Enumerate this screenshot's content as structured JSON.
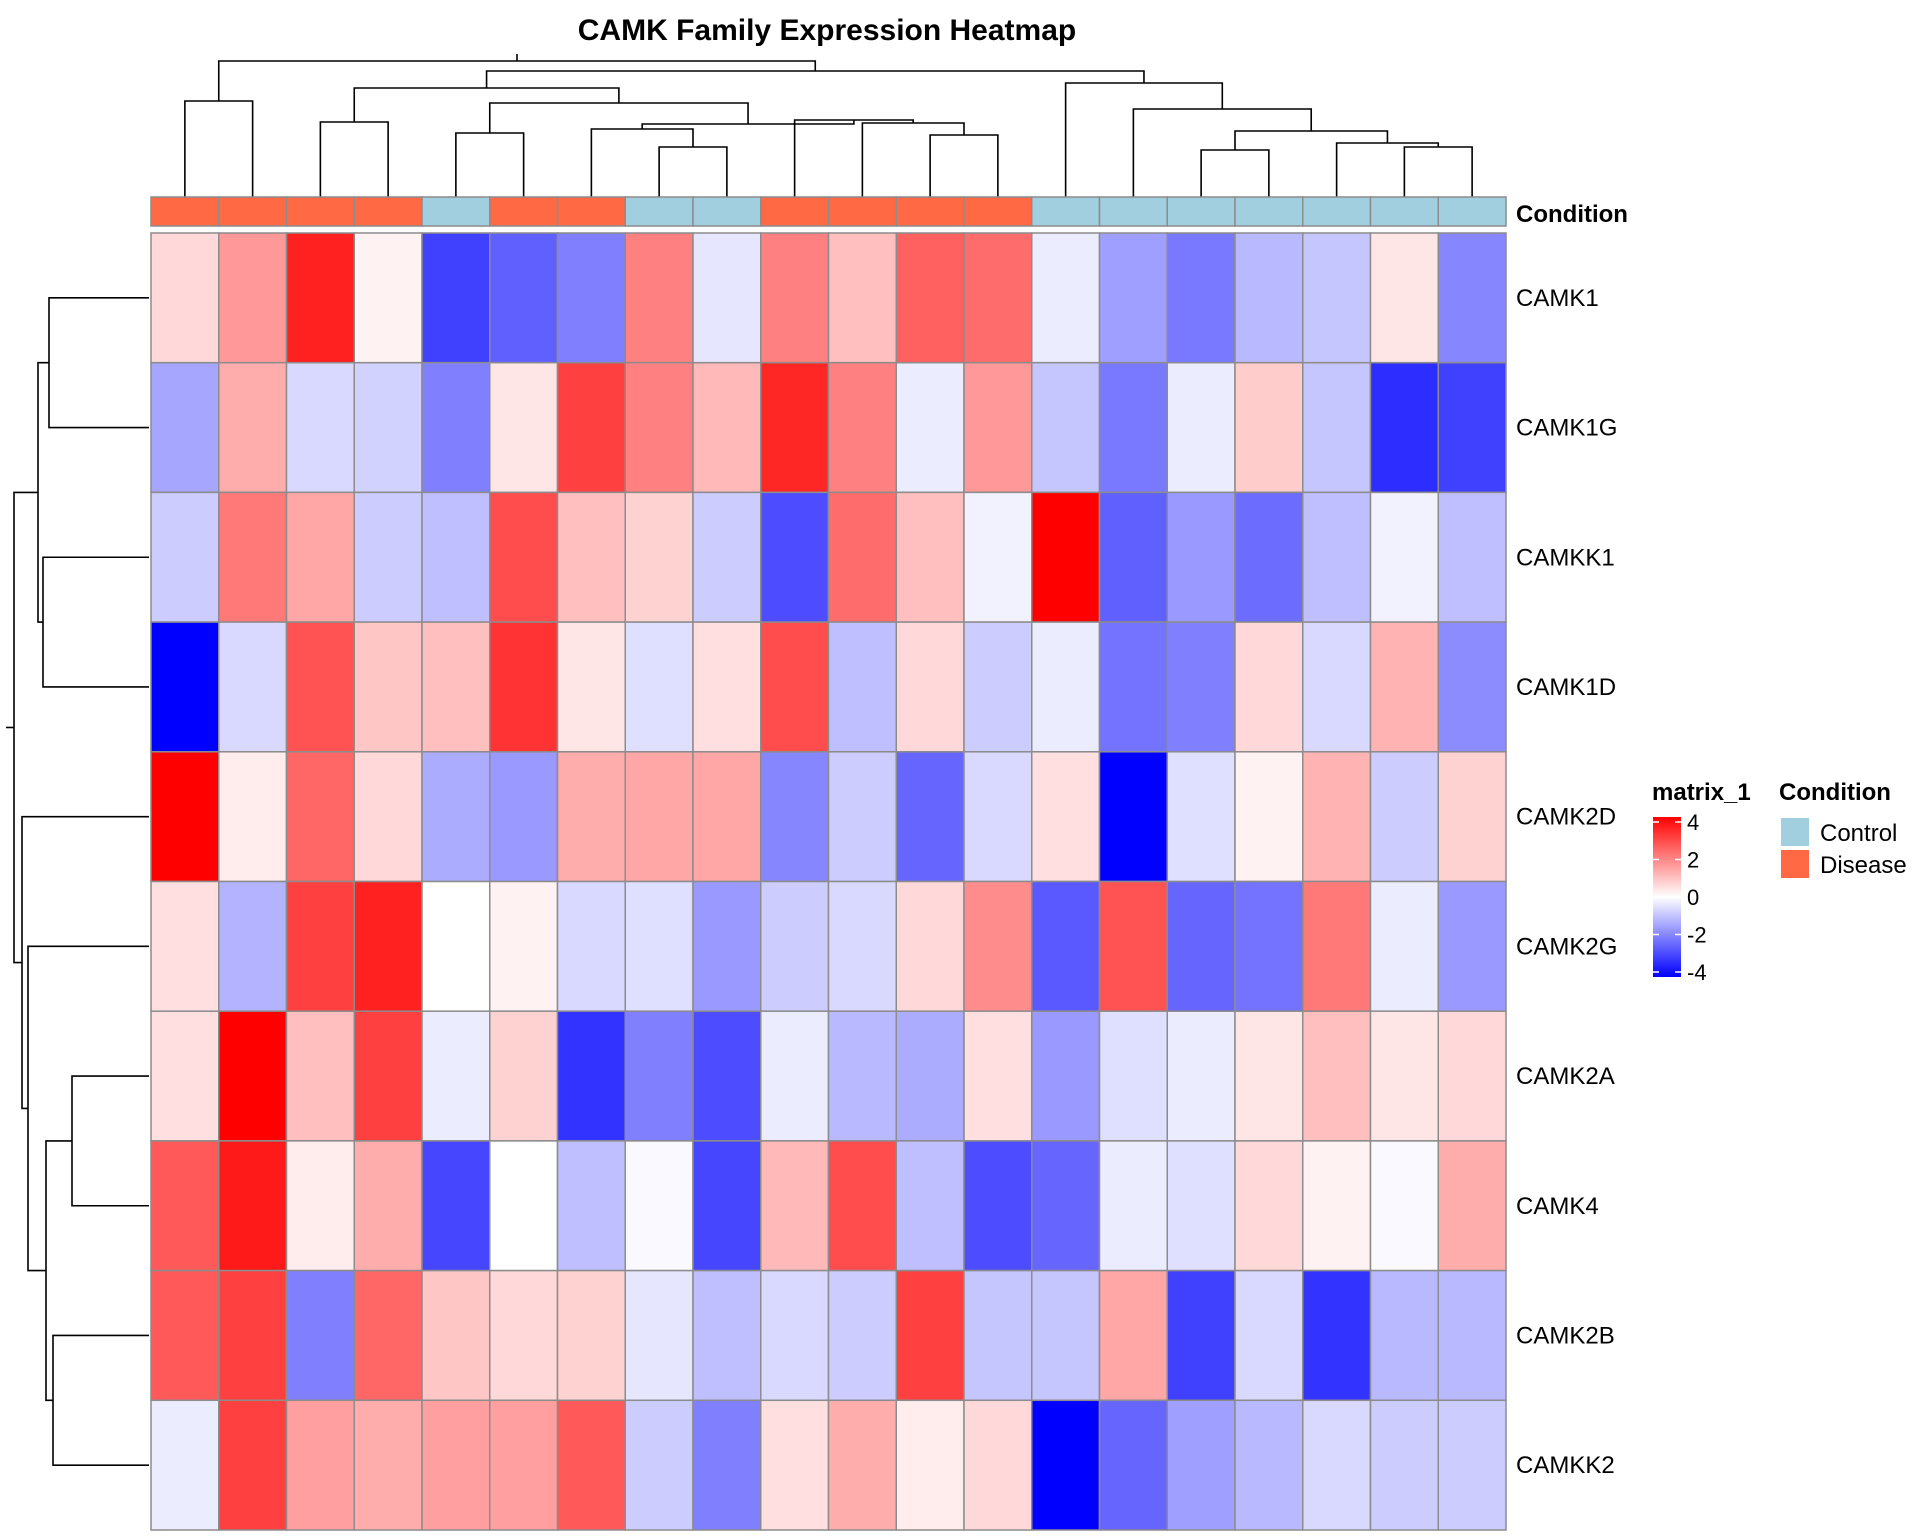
{
  "chart_data": {
    "type": "heatmap",
    "title": "CAMK Family Expression Heatmap",
    "rows": [
      "CAMK1",
      "CAMK1G",
      "CAMKK1",
      "CAMK1D",
      "CAMK2D",
      "CAMK2G",
      "CAMK2A",
      "CAMK4",
      "CAMK2B",
      "CAMKK2"
    ],
    "column_annotation": {
      "name": "Condition",
      "values": [
        "Disease",
        "Disease",
        "Disease",
        "Disease",
        "Control",
        "Disease",
        "Disease",
        "Control",
        "Control",
        "Disease",
        "Disease",
        "Disease",
        "Disease",
        "Control",
        "Control",
        "Control",
        "Control",
        "Control",
        "Control",
        "Control"
      ]
    },
    "values": [
      [
        0.6,
        1.6,
        3.5,
        0.2,
        -3.0,
        -2.5,
        -2.0,
        2.0,
        -0.4,
        2.0,
        1.0,
        2.5,
        2.3,
        -0.3,
        -1.5,
        -2.1,
        -1.1,
        -0.9,
        0.4,
        -1.9
      ],
      [
        -1.4,
        1.3,
        -0.6,
        -0.7,
        -2.0,
        0.4,
        3.0,
        2.0,
        1.1,
        3.4,
        2.0,
        -0.3,
        1.6,
        -0.9,
        -2.1,
        -0.3,
        0.8,
        -0.9,
        -3.3,
        -3.0
      ],
      [
        -0.8,
        2.1,
        1.4,
        -0.8,
        -1.0,
        2.8,
        1.0,
        0.7,
        -0.8,
        -2.8,
        2.3,
        1.0,
        -0.2,
        4.0,
        -2.5,
        -1.6,
        -2.3,
        -1.0,
        -0.2,
        -1.0
      ],
      [
        -4.0,
        -0.6,
        2.7,
        0.9,
        1.0,
        3.2,
        0.4,
        -0.5,
        0.5,
        2.8,
        -1.0,
        0.6,
        -0.8,
        -0.3,
        -2.2,
        -2.0,
        0.6,
        -0.6,
        1.2,
        -1.8
      ],
      [
        4.0,
        0.3,
        2.4,
        0.6,
        -1.3,
        -1.6,
        1.3,
        1.4,
        1.4,
        -1.9,
        -0.8,
        -2.4,
        -0.6,
        0.5,
        -4.0,
        -0.5,
        0.2,
        1.2,
        -0.8,
        0.7
      ],
      [
        0.5,
        -1.2,
        3.0,
        3.5,
        0.0,
        0.2,
        -0.6,
        -0.5,
        -1.6,
        -0.8,
        -0.6,
        0.6,
        1.8,
        -2.6,
        2.7,
        -2.4,
        -2.2,
        2.1,
        -0.3,
        -1.6
      ],
      [
        0.5,
        4.0,
        1.0,
        3.0,
        -0.3,
        0.7,
        -3.2,
        -2.0,
        -2.8,
        -0.3,
        -1.1,
        -1.3,
        0.5,
        -1.6,
        -0.5,
        -0.3,
        0.4,
        1.0,
        0.4,
        0.6
      ],
      [
        2.6,
        3.6,
        0.3,
        1.3,
        -2.9,
        0.0,
        -1.0,
        -0.1,
        -2.9,
        1.1,
        2.8,
        -1.0,
        -2.8,
        -2.4,
        -0.3,
        -0.5,
        0.6,
        0.2,
        -0.1,
        1.3
      ],
      [
        2.6,
        3.0,
        -2.0,
        2.4,
        0.9,
        0.6,
        0.7,
        -0.4,
        -1.0,
        -0.6,
        -0.8,
        3.0,
        -0.9,
        -0.9,
        1.4,
        -3.0,
        -0.6,
        -3.2,
        -1.1,
        -1.1
      ],
      [
        -0.3,
        3.0,
        1.5,
        1.3,
        1.5,
        1.5,
        2.6,
        -0.8,
        -2.0,
        0.5,
        1.3,
        0.3,
        0.6,
        -4.0,
        -2.4,
        -1.5,
        -1.1,
        -0.6,
        -0.8,
        -0.8
      ]
    ],
    "colorbar": {
      "title": "matrix_1",
      "ticks": [
        "4",
        "2",
        "0",
        "-2",
        "-4"
      ],
      "range": [
        -4,
        4
      ],
      "colors": {
        "low": "#0000ff",
        "mid": "#ffffff",
        "high": "#ff0000"
      }
    },
    "legend": {
      "title": "Condition",
      "items": [
        {
          "label": "Control",
          "color": "#a2cfe0"
        },
        {
          "label": "Disease",
          "color": "#ff6a45"
        }
      ]
    }
  }
}
